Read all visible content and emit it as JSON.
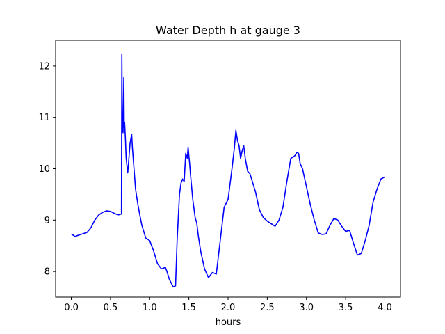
{
  "chart_data": {
    "type": "line",
    "title": "Water Depth h at gauge 3",
    "xlabel": "hours",
    "ylabel": "",
    "xlim": [
      -0.2,
      4.2
    ],
    "ylim": [
      7.5,
      12.5
    ],
    "xticks": [
      0.0,
      0.5,
      1.0,
      1.5,
      2.0,
      2.5,
      3.0,
      3.5,
      4.0
    ],
    "xtick_labels": [
      "0.0",
      "0.5",
      "1.0",
      "1.5",
      "2.0",
      "2.5",
      "3.0",
      "3.5",
      "4.0"
    ],
    "yticks": [
      8,
      9,
      10,
      11,
      12
    ],
    "ytick_labels": [
      "8",
      "9",
      "10",
      "11",
      "12"
    ],
    "grid": false,
    "series": [
      {
        "color": "#0000ff",
        "x": [
          0.0,
          0.05,
          0.08,
          0.12,
          0.2,
          0.25,
          0.3,
          0.35,
          0.4,
          0.45,
          0.5,
          0.55,
          0.6,
          0.64,
          0.645,
          0.65,
          0.66,
          0.67,
          0.675,
          0.68,
          0.69,
          0.7,
          0.72,
          0.74,
          0.75,
          0.77,
          0.78,
          0.8,
          0.82,
          0.85,
          0.88,
          0.9,
          0.95,
          1.0,
          1.05,
          1.1,
          1.15,
          1.2,
          1.22,
          1.25,
          1.3,
          1.33,
          1.35,
          1.38,
          1.4,
          1.42,
          1.44,
          1.46,
          1.48,
          1.49,
          1.5,
          1.51,
          1.52,
          1.55,
          1.58,
          1.6,
          1.62,
          1.65,
          1.7,
          1.75,
          1.8,
          1.85,
          1.9,
          1.95,
          2.0,
          2.05,
          2.08,
          2.1,
          2.12,
          2.14,
          2.16,
          2.18,
          2.2,
          2.22,
          2.25,
          2.28,
          2.3,
          2.35,
          2.4,
          2.45,
          2.5,
          2.55,
          2.6,
          2.65,
          2.7,
          2.75,
          2.8,
          2.85,
          2.88,
          2.9,
          2.92,
          2.95,
          3.0,
          3.05,
          3.1,
          3.15,
          3.2,
          3.25,
          3.3,
          3.35,
          3.4,
          3.45,
          3.5,
          3.55,
          3.6,
          3.65,
          3.7,
          3.75,
          3.8,
          3.85,
          3.9,
          3.95,
          4.0
        ],
        "y": [
          8.73,
          8.68,
          8.7,
          8.72,
          8.76,
          8.85,
          9.0,
          9.1,
          9.15,
          9.18,
          9.17,
          9.13,
          9.1,
          9.12,
          12.23,
          10.9,
          10.7,
          11.78,
          10.8,
          10.9,
          10.6,
          10.2,
          9.92,
          10.3,
          10.5,
          10.67,
          10.4,
          10.0,
          9.6,
          9.3,
          9.05,
          8.9,
          8.65,
          8.6,
          8.4,
          8.15,
          8.05,
          8.08,
          8.0,
          7.85,
          7.7,
          7.72,
          8.6,
          9.5,
          9.72,
          9.8,
          9.75,
          10.3,
          10.2,
          10.42,
          10.25,
          10.1,
          9.9,
          9.4,
          9.05,
          8.95,
          8.7,
          8.4,
          8.05,
          7.88,
          7.98,
          7.95,
          8.6,
          9.25,
          9.4,
          10.0,
          10.4,
          10.75,
          10.55,
          10.45,
          10.2,
          10.35,
          10.45,
          10.2,
          9.95,
          9.9,
          9.8,
          9.55,
          9.2,
          9.05,
          8.98,
          8.93,
          8.88,
          9.0,
          9.25,
          9.75,
          10.2,
          10.25,
          10.32,
          10.3,
          10.1,
          10.0,
          9.65,
          9.3,
          9.0,
          8.75,
          8.72,
          8.73,
          8.9,
          9.03,
          9.0,
          8.88,
          8.78,
          8.8,
          8.55,
          8.32,
          8.35,
          8.6,
          8.9,
          9.35,
          9.6,
          9.8,
          9.84
        ]
      }
    ]
  }
}
